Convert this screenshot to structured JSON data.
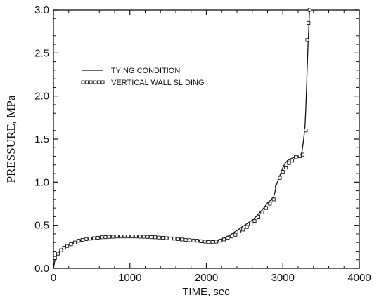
{
  "chart_data": {
    "type": "line",
    "xlabel": "TIME, sec",
    "ylabel": "PRESSURE, MPa",
    "xlim": [
      0,
      4000
    ],
    "ylim": [
      0,
      3.0
    ],
    "x_ticks": [
      "0",
      "1000",
      "2000",
      "3000",
      "4000"
    ],
    "y_ticks": [
      "0.0",
      "0.5",
      "1.0",
      "1.5",
      "2.0",
      "2.5",
      "3.0"
    ],
    "grid": false,
    "legend_position": "top-left",
    "series": [
      {
        "name": ": TYING CONDITION",
        "style": "solid-line",
        "x": [
          0,
          25,
          50,
          100,
          150,
          200,
          300,
          400,
          500,
          600,
          700,
          800,
          900,
          1000,
          1100,
          1200,
          1300,
          1400,
          1500,
          1600,
          1700,
          1800,
          1900,
          2000,
          2050,
          2100,
          2150,
          2200,
          2250,
          2300,
          2350,
          2400,
          2450,
          2500,
          2550,
          2600,
          2650,
          2700,
          2750,
          2800,
          2850,
          2880,
          2900,
          2920,
          2950,
          2970,
          3000,
          3030,
          3060,
          3100,
          3150,
          3200,
          3230,
          3250,
          3270,
          3290,
          3300,
          3310,
          3320,
          3330,
          3340,
          3350
        ],
        "y": [
          0.0,
          0.12,
          0.17,
          0.22,
          0.25,
          0.28,
          0.31,
          0.33,
          0.345,
          0.355,
          0.36,
          0.365,
          0.37,
          0.37,
          0.37,
          0.368,
          0.365,
          0.36,
          0.355,
          0.35,
          0.34,
          0.33,
          0.32,
          0.31,
          0.305,
          0.31,
          0.32,
          0.34,
          0.36,
          0.38,
          0.41,
          0.44,
          0.47,
          0.5,
          0.53,
          0.56,
          0.6,
          0.65,
          0.7,
          0.76,
          0.8,
          0.83,
          0.9,
          0.98,
          1.05,
          1.1,
          1.17,
          1.22,
          1.25,
          1.27,
          1.29,
          1.3,
          1.31,
          1.35,
          1.48,
          1.65,
          1.85,
          2.1,
          2.35,
          2.6,
          2.8,
          3.0
        ]
      },
      {
        "name": ": VERTICAL WALL SLIDING",
        "style": "square-markers",
        "x": [
          20,
          60,
          100,
          140,
          180,
          230,
          280,
          330,
          380,
          430,
          480,
          530,
          580,
          630,
          680,
          730,
          780,
          830,
          880,
          930,
          980,
          1030,
          1080,
          1130,
          1180,
          1230,
          1280,
          1330,
          1380,
          1430,
          1480,
          1530,
          1580,
          1630,
          1680,
          1730,
          1780,
          1830,
          1880,
          1930,
          1980,
          2030,
          2080,
          2130,
          2180,
          2230,
          2280,
          2330,
          2380,
          2430,
          2480,
          2530,
          2580,
          2630,
          2680,
          2730,
          2780,
          2830,
          2880,
          2920,
          2960,
          3000,
          3040,
          3080,
          3120,
          3170,
          3220,
          3260,
          3300,
          3320,
          3335,
          3350
        ],
        "y": [
          0.12,
          0.17,
          0.21,
          0.24,
          0.26,
          0.28,
          0.3,
          0.32,
          0.33,
          0.34,
          0.345,
          0.35,
          0.355,
          0.36,
          0.362,
          0.365,
          0.367,
          0.37,
          0.37,
          0.37,
          0.37,
          0.37,
          0.37,
          0.368,
          0.367,
          0.365,
          0.362,
          0.36,
          0.357,
          0.355,
          0.35,
          0.347,
          0.345,
          0.34,
          0.335,
          0.33,
          0.327,
          0.323,
          0.32,
          0.315,
          0.31,
          0.305,
          0.305,
          0.31,
          0.32,
          0.335,
          0.355,
          0.37,
          0.39,
          0.43,
          0.45,
          0.48,
          0.51,
          0.55,
          0.6,
          0.65,
          0.7,
          0.75,
          0.8,
          0.95,
          1.05,
          1.12,
          1.17,
          1.22,
          1.25,
          1.29,
          1.3,
          1.32,
          1.6,
          2.65,
          2.85,
          3.0
        ]
      }
    ]
  }
}
